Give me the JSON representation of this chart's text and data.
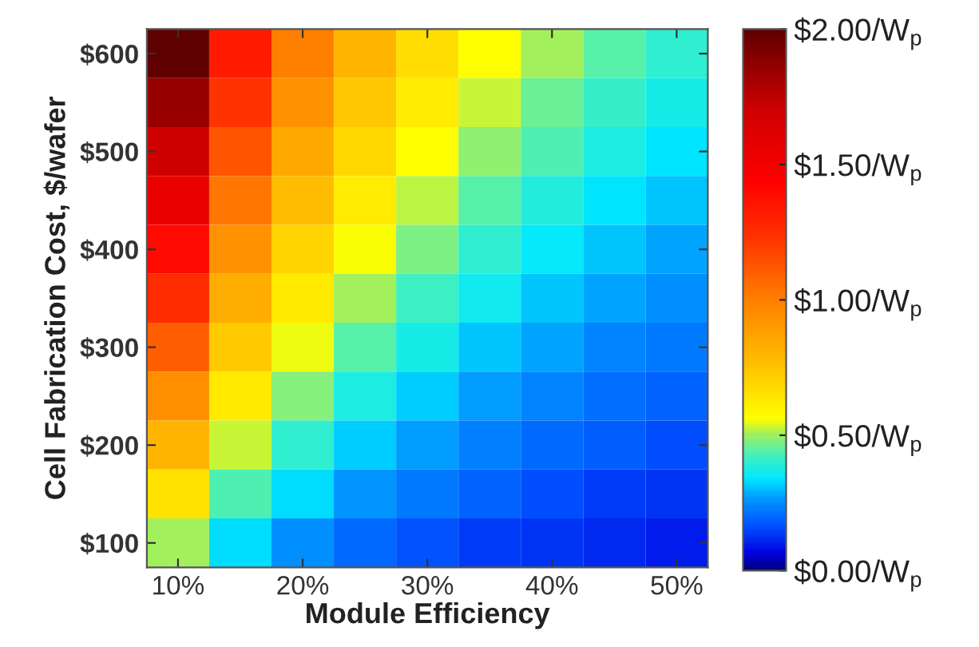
{
  "chart_data": {
    "type": "heatmap",
    "xlabel": "Module Efficiency",
    "ylabel": "Cell Fabrication Cost, $/wafer",
    "categories": [
      "10%",
      null,
      "20%",
      null,
      "30%",
      null,
      "40%",
      null,
      "50%"
    ],
    "y_categories": [
      "$600",
      null,
      "$500",
      null,
      "$400",
      null,
      "$300",
      null,
      "$200",
      null,
      "$100"
    ],
    "cells": [
      [
        2.0,
        1.33,
        1.0,
        0.8,
        0.67,
        0.57,
        0.5,
        0.44,
        0.4
      ],
      [
        1.85,
        1.23,
        0.93,
        0.74,
        0.62,
        0.53,
        0.46,
        0.41,
        0.37
      ],
      [
        1.7,
        1.13,
        0.85,
        0.68,
        0.57,
        0.49,
        0.43,
        0.38,
        0.34
      ],
      [
        1.55,
        1.03,
        0.78,
        0.62,
        0.52,
        0.44,
        0.39,
        0.34,
        0.31
      ],
      [
        1.4,
        0.93,
        0.7,
        0.56,
        0.47,
        0.4,
        0.35,
        0.31,
        0.28
      ],
      [
        1.25,
        0.83,
        0.63,
        0.5,
        0.42,
        0.36,
        0.31,
        0.28,
        0.25
      ],
      [
        1.1,
        0.73,
        0.55,
        0.44,
        0.37,
        0.31,
        0.28,
        0.24,
        0.22
      ],
      [
        0.95,
        0.63,
        0.48,
        0.38,
        0.32,
        0.27,
        0.24,
        0.21,
        0.19
      ],
      [
        0.8,
        0.53,
        0.4,
        0.32,
        0.27,
        0.23,
        0.2,
        0.18,
        0.16
      ],
      [
        0.65,
        0.43,
        0.33,
        0.26,
        0.22,
        0.19,
        0.16,
        0.14,
        0.13
      ],
      [
        0.5,
        0.33,
        0.25,
        0.2,
        0.17,
        0.14,
        0.13,
        0.11,
        0.1
      ]
    ],
    "clim": [
      0,
      2
    ],
    "cticks": [
      {
        "value": 0,
        "label": "$0.00/W$_{p}$"
      },
      {
        "value": 0.5,
        "label": "$0.50/W$_{p}$"
      },
      {
        "value": 1,
        "label": "$1.00/W$_{p}$"
      },
      {
        "value": 1.5,
        "label": "$1.50/W$_{p}$"
      },
      {
        "value": 2,
        "label": "$2.00/W$_{p}$"
      }
    ]
  }
}
